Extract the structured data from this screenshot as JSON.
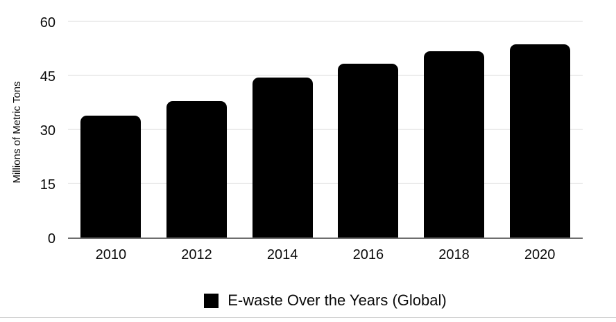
{
  "chart_data": {
    "type": "bar",
    "title": "",
    "legend": "E-waste Over the Years (Global)",
    "categories": [
      "2010",
      "2012",
      "2014",
      "2016",
      "2018",
      "2020"
    ],
    "values": [
      33.8,
      37.8,
      44.4,
      48.2,
      51.8,
      53.6
    ],
    "xlabel": "",
    "ylabel": "Millions of Metric Tons",
    "yticks": [
      0,
      15,
      30,
      45,
      60
    ],
    "ylim": [
      0,
      60
    ],
    "grid": "horizontal",
    "legend_position": "bottom-center",
    "colors": {
      "bar": "#000000",
      "gridline": "#d8d8d8",
      "axis_line": "#6e6e6e",
      "text": "#0a0a0a",
      "bottom_rule": "#d4d4d4",
      "background": "#ffffff"
    }
  }
}
